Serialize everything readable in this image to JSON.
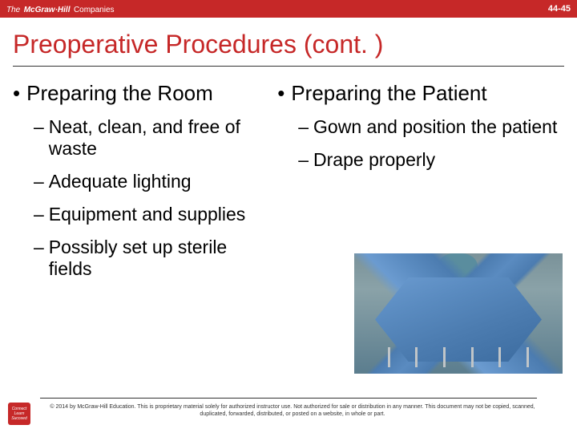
{
  "header": {
    "brand_prefix": "The",
    "brand_name": "McGraw·Hill",
    "brand_suffix": "Companies",
    "page_number": "44-45"
  },
  "title": "Preoperative Procedures (cont. )",
  "left_column": {
    "heading": "Preparing the Room",
    "items": [
      "Neat, clean, and free of waste",
      "Adequate lighting",
      "Equipment and supplies",
      "Possibly set up sterile fields"
    ]
  },
  "right_column": {
    "heading": "Preparing the Patient",
    "items": [
      "Gown and position the patient",
      "Drape properly"
    ]
  },
  "image": {
    "alt": "surgical-drape-image",
    "colors": {
      "bg_top": "#7a9299",
      "drape_main": "#5a8bc0",
      "drape_dark": "#4c7cb0"
    }
  },
  "footer": {
    "logo_text": "Connect Learn Succeed",
    "copyright": "© 2014 by McGraw-Hill Education. This is proprietary material solely for authorized instructor use. Not authorized for sale or distribution in any manner. This document may not be copied, scanned, duplicated, forwarded, distributed, or posted on a website, in whole or part."
  },
  "colors": {
    "brand_red": "#c62828",
    "text": "#000000"
  }
}
